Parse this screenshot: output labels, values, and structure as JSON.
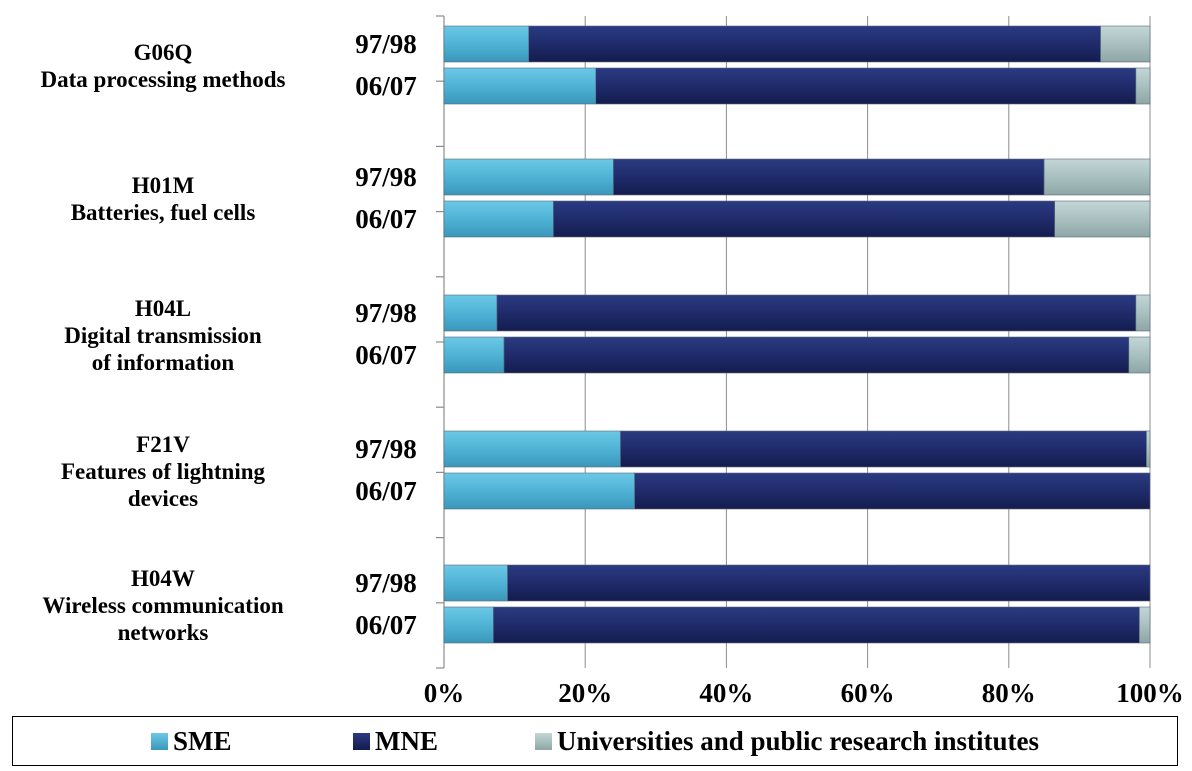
{
  "chart_data": {
    "type": "bar",
    "orientation": "horizontal",
    "stacked": "percent",
    "xlim": [
      0,
      100
    ],
    "x_ticks": [
      "0%",
      "20%",
      "40%",
      "60%",
      "80%",
      "100%"
    ],
    "grid": "vertical",
    "legend_position": "bottom",
    "groups": [
      {
        "code": "G06Q",
        "description": [
          "Data processing methods"
        ]
      },
      {
        "code": "H01M",
        "description": [
          "Batteries, fuel cells"
        ]
      },
      {
        "code": "H04L",
        "description": [
          "Digital transmission",
          "of information"
        ]
      },
      {
        "code": "F21V",
        "description": [
          "Features of lightning",
          "devices"
        ]
      },
      {
        "code": "H04W",
        "description": [
          "Wireless communication",
          "networks"
        ]
      }
    ],
    "periods": [
      "97/98",
      "06/07"
    ],
    "series": [
      {
        "name": "SME",
        "color": "#4fb3d6",
        "values": [
          [
            12,
            21.5
          ],
          [
            24,
            15.5
          ],
          [
            7.5,
            8.5
          ],
          [
            25,
            27
          ],
          [
            9,
            7
          ]
        ]
      },
      {
        "name": "MNE",
        "color": "#1f2b6b",
        "values": [
          [
            81,
            76.5
          ],
          [
            61,
            71
          ],
          [
            90.5,
            88.5
          ],
          [
            74.5,
            73
          ],
          [
            91,
            91.5
          ]
        ]
      },
      {
        "name": "Universities and public research institutes",
        "color": "#a9c0c0",
        "values": [
          [
            7,
            2
          ],
          [
            15,
            13.5
          ],
          [
            2,
            3
          ],
          [
            0.5,
            0
          ],
          [
            0,
            1.5
          ]
        ]
      }
    ]
  }
}
